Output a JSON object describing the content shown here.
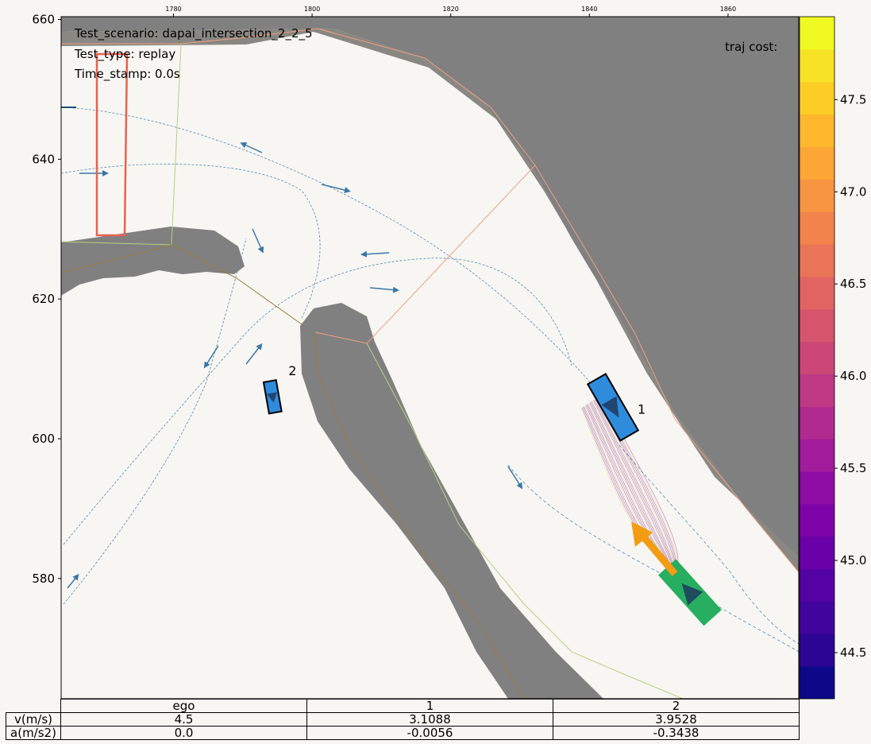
{
  "annotations": {
    "scenario": "Test_scenario: dapai_intersection_2_2_5",
    "type": "Test_type: replay",
    "timestamp": "Time_stamp: 0.0s",
    "cost_label": "traj cost:"
  },
  "chart_data": [
    {
      "type": "scatter",
      "title": "",
      "xlabel": "",
      "ylabel": "",
      "xlim": [
        1763.8,
        1870.2
      ],
      "ylim": [
        562.8,
        660.4
      ],
      "x_ticks": [
        1780,
        1800,
        1820,
        1840,
        1860
      ],
      "y_ticks": [
        580,
        600,
        620,
        640,
        660
      ],
      "grid": false,
      "vehicles": [
        {
          "label": "1",
          "x": 1843.4,
          "y": 604.5,
          "heading_deg": -60,
          "color": "#2f8bdc"
        },
        {
          "label": "2",
          "x": 1794.3,
          "y": 606.0,
          "heading_deg": -80,
          "color": "#2f8bdc"
        },
        {
          "label": "",
          "x": 1854.5,
          "y": 578.0,
          "heading_deg": 132,
          "color": "#27ae60"
        }
      ],
      "colorbar": {
        "label": "",
        "range": [
          44.25,
          47.95
        ],
        "ticks": [
          44.5,
          45.0,
          45.5,
          46.0,
          46.5,
          47.0,
          47.5
        ],
        "colormap": "plasma"
      }
    },
    {
      "type": "table",
      "columns": [
        "ego",
        "1",
        "2"
      ],
      "rows": [
        {
          "label": "v(m/s)",
          "values": [
            "4.5",
            "3.1088",
            "3.9528"
          ]
        },
        {
          "label": "a(m/s2)",
          "values": [
            "0.0",
            "-0.0056",
            "-0.3438"
          ]
        }
      ]
    }
  ]
}
